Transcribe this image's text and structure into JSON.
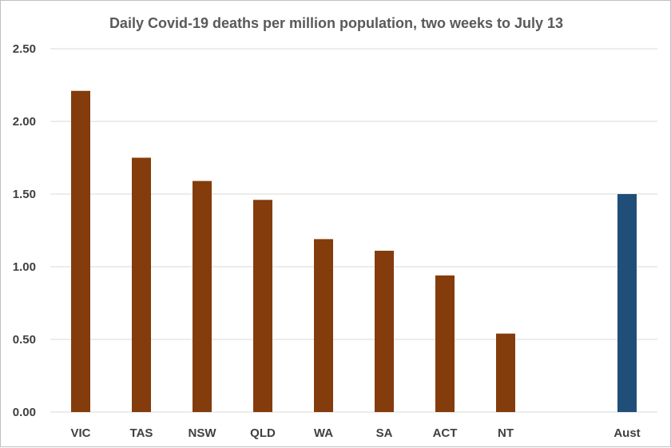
{
  "chart_data": {
    "type": "bar",
    "title": "Daily Covid-19 deaths per million population, two weeks to July 13",
    "xlabel": "",
    "ylabel": "",
    "categories": [
      "VIC",
      "TAS",
      "NSW",
      "QLD",
      "WA",
      "SA",
      "ACT",
      "NT",
      "",
      "Aust"
    ],
    "values": [
      2.21,
      1.75,
      1.59,
      1.46,
      1.19,
      1.11,
      0.94,
      0.54,
      null,
      1.5
    ],
    "ylim": [
      0,
      2.5
    ],
    "yticks": [
      "0.00",
      "0.50",
      "1.00",
      "1.50",
      "2.00",
      "2.50"
    ],
    "grid": true,
    "legend": "none",
    "colors": {
      "states": "#843C0C",
      "national": "#1F4E79",
      "gridline": "#D9D9D9",
      "text": "#404040"
    }
  }
}
